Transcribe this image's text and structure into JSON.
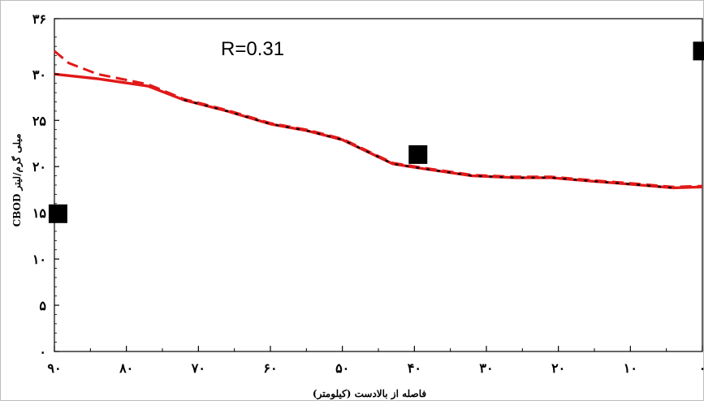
{
  "chart_data": {
    "type": "line",
    "x_reversed": true,
    "xlim": [
      0,
      90
    ],
    "ylim": [
      0,
      36
    ],
    "x_ticks": [
      {
        "value": 90,
        "label": "۹۰"
      },
      {
        "value": 80,
        "label": "۸۰"
      },
      {
        "value": 70,
        "label": "۷۰"
      },
      {
        "value": 60,
        "label": "۶۰"
      },
      {
        "value": 50,
        "label": "۵۰"
      },
      {
        "value": 40,
        "label": "۴۰"
      },
      {
        "value": 30,
        "label": "۳۰"
      },
      {
        "value": 20,
        "label": "۲۰"
      },
      {
        "value": 10,
        "label": "۱۰"
      },
      {
        "value": 0,
        "label": "۰"
      }
    ],
    "y_ticks": [
      {
        "value": 0,
        "label": "۰"
      },
      {
        "value": 5,
        "label": "۵"
      },
      {
        "value": 10,
        "label": "۱۰"
      },
      {
        "value": 15,
        "label": "۱۵"
      },
      {
        "value": 20,
        "label": "۲۰"
      },
      {
        "value": 25,
        "label": "۲۵"
      },
      {
        "value": 30,
        "label": "۳۰"
      },
      {
        "value": 36,
        "label": "۳۶"
      }
    ],
    "xlabel": "فاصله از بالادست (کیلومتر)",
    "ylabel": "میلی گرم/لیتر CBOD",
    "annotation": "R=0.31",
    "grid": false,
    "legend": "none",
    "series": [
      {
        "style": "solid",
        "color": "#e11919",
        "x": [
          90,
          84,
          77,
          72,
          66,
          60,
          55,
          50,
          43,
          39,
          32,
          26,
          21,
          15,
          10,
          4,
          0
        ],
        "y": [
          30.0,
          29.5,
          28.7,
          27.2,
          26.0,
          24.6,
          23.9,
          22.9,
          20.3,
          19.8,
          19.0,
          18.8,
          18.8,
          18.4,
          18.1,
          17.7,
          17.8
        ]
      },
      {
        "style": "dashed",
        "color": "#e11919",
        "x": [
          90,
          88,
          84,
          77,
          72,
          66,
          60,
          55,
          50,
          43,
          39,
          32,
          26,
          21,
          15,
          10,
          4,
          0
        ],
        "y": [
          32.5,
          31.2,
          30.0,
          28.9,
          27.3,
          26.1,
          24.7,
          24.0,
          23.0,
          20.4,
          19.9,
          19.1,
          18.9,
          18.9,
          18.5,
          18.2,
          17.8,
          17.9
        ]
      },
      {
        "style": "dotted",
        "color": "#000000",
        "x": [
          72,
          66,
          60,
          55,
          50,
          43,
          39,
          32,
          26,
          21,
          15,
          10,
          4
        ],
        "y": [
          27.2,
          26.0,
          24.6,
          23.9,
          22.9,
          20.3,
          19.8,
          19.0,
          18.8,
          18.8,
          18.4,
          18.1,
          17.7
        ]
      }
    ],
    "observed": {
      "marker": "square",
      "color": "#000000",
      "x": [
        89.5,
        39.5,
        0
      ],
      "y": [
        14.9,
        21.3,
        32.5
      ]
    }
  }
}
